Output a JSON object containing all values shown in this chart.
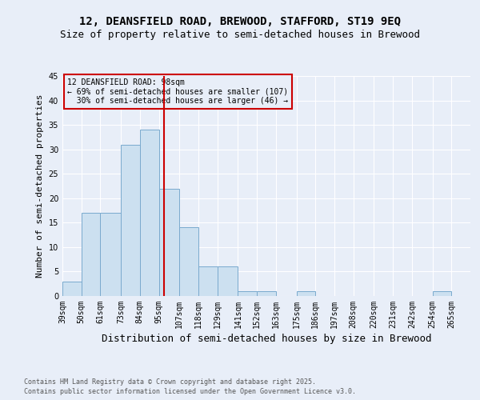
{
  "title1": "12, DEANSFIELD ROAD, BREWOOD, STAFFORD, ST19 9EQ",
  "title2": "Size of property relative to semi-detached houses in Brewood",
  "xlabel": "Distribution of semi-detached houses by size in Brewood",
  "ylabel": "Number of semi-detached properties",
  "footnote1": "Contains HM Land Registry data © Crown copyright and database right 2025.",
  "footnote2": "Contains public sector information licensed under the Open Government Licence v3.0.",
  "bin_labels": [
    "39sqm",
    "50sqm",
    "61sqm",
    "73sqm",
    "84sqm",
    "95sqm",
    "107sqm",
    "118sqm",
    "129sqm",
    "141sqm",
    "152sqm",
    "163sqm",
    "175sqm",
    "186sqm",
    "197sqm",
    "208sqm",
    "220sqm",
    "231sqm",
    "242sqm",
    "254sqm",
    "265sqm"
  ],
  "bin_edges": [
    39,
    50,
    61,
    73,
    84,
    95,
    107,
    118,
    129,
    141,
    152,
    163,
    175,
    186,
    197,
    208,
    220,
    231,
    242,
    254,
    265
  ],
  "values": [
    3,
    17,
    17,
    31,
    34,
    22,
    14,
    6,
    6,
    1,
    1,
    0,
    1,
    0,
    0,
    0,
    0,
    0,
    0,
    1
  ],
  "bar_color": "#cce0f0",
  "bar_edge_color": "#7aaace",
  "property_line_x": 98,
  "property_line_label": "12 DEANSFIELD ROAD: 98sqm",
  "pct_smaller": 69,
  "count_smaller": 107,
  "pct_larger": 30,
  "count_larger": 46,
  "annotation_box_color": "#cc0000",
  "vline_color": "#cc0000",
  "ylim": [
    0,
    45
  ],
  "yticks": [
    0,
    5,
    10,
    15,
    20,
    25,
    30,
    35,
    40,
    45
  ],
  "background_color": "#e8eef8",
  "grid_color": "#ffffff",
  "title1_fontsize": 10,
  "title2_fontsize": 9,
  "xlabel_fontsize": 9,
  "ylabel_fontsize": 8,
  "footnote_fontsize": 6,
  "tick_fontsize": 7,
  "annot_fontsize": 7
}
